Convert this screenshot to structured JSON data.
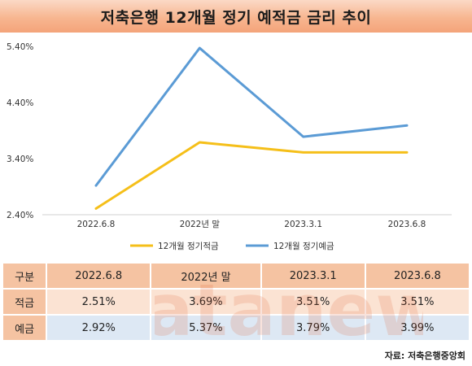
{
  "title": "저축은행 12개월 정기 예적금 금리 추이",
  "chart_data": {
    "type": "line",
    "categories": [
      "2022.6.8",
      "2022년 말",
      "2023.3.1",
      "2023.6.8"
    ],
    "y_ticks": [
      "5.40%",
      "4.40%",
      "3.40%",
      "2.40%"
    ],
    "y_tick_values": [
      5.4,
      4.4,
      3.4,
      2.4
    ],
    "ylim": [
      2.4,
      5.6
    ],
    "grid": false,
    "legend_position": "bottom",
    "series": [
      {
        "name": "12개월 정기적금",
        "values": [
          2.51,
          3.69,
          3.51,
          3.51
        ],
        "color": "#f5bf19"
      },
      {
        "name": "12개월 정기예금",
        "values": [
          2.92,
          5.37,
          3.79,
          3.99
        ],
        "color": "#5b9bd5"
      }
    ]
  },
  "table": {
    "header": [
      "구분",
      "2022.6.8",
      "2022년 말",
      "2023.3.1",
      "2023.6.8"
    ],
    "rows": [
      {
        "label": "적금",
        "cells": [
          "2.51%",
          "3.69%",
          "3.51%",
          "3.51%"
        ]
      },
      {
        "label": "예금",
        "cells": [
          "2.92%",
          "5.37%",
          "3.79%",
          "3.99%"
        ]
      }
    ]
  },
  "watermark": "datanews",
  "source": "자료: 저축은행중앙회"
}
